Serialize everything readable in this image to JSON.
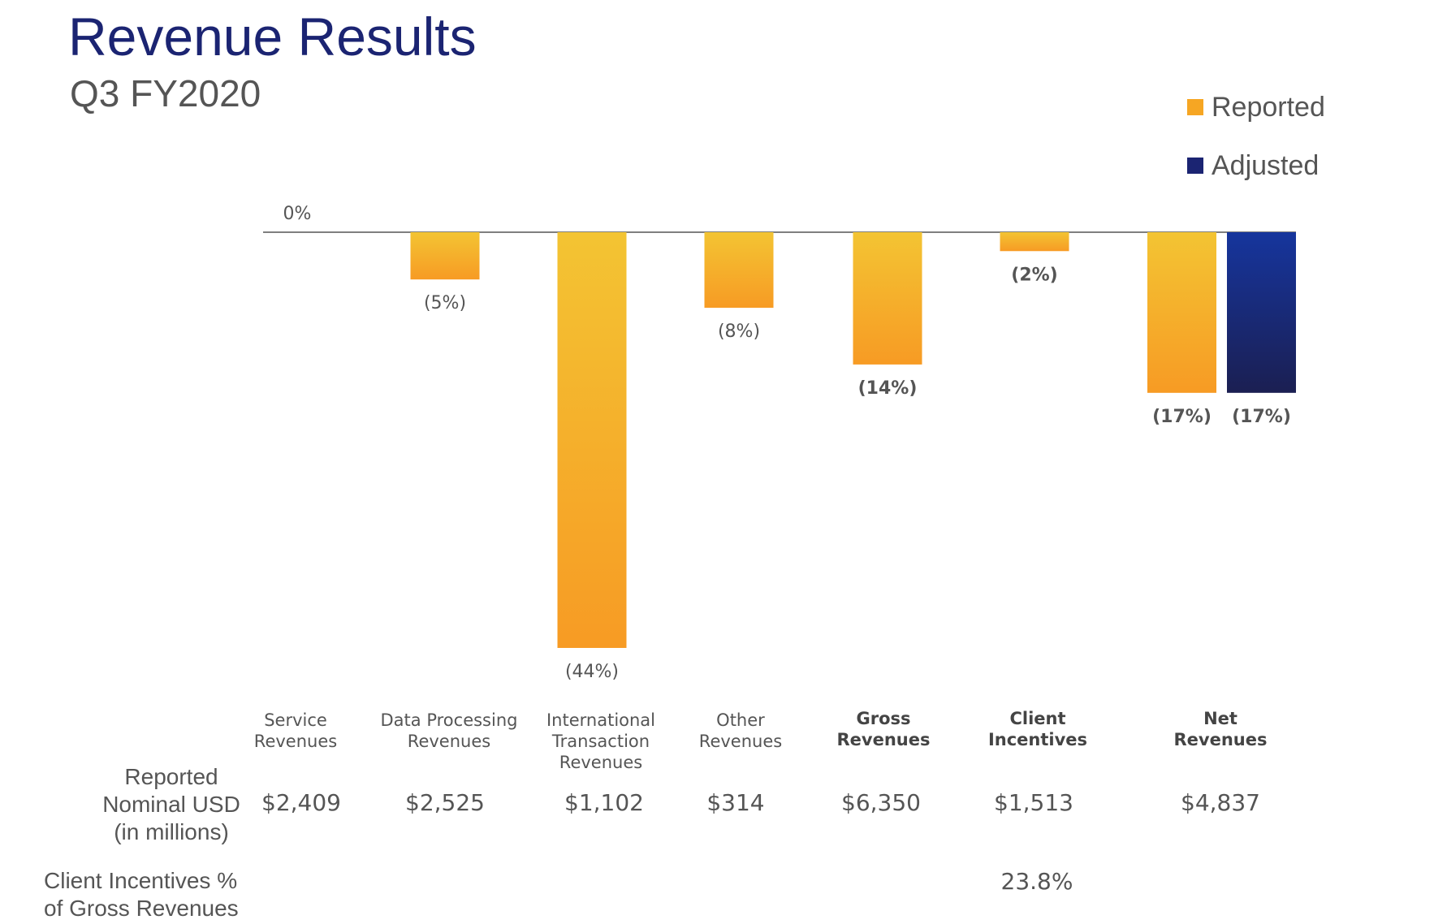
{
  "title": "Revenue Results",
  "subtitle": "Q3 FY2020",
  "legend": [
    {
      "label": "Reported",
      "color": "#f6a623"
    },
    {
      "label": "Adjusted",
      "color": "#1b2472"
    }
  ],
  "colors": {
    "reported_top": "#f3c433",
    "reported_bottom": "#f79b24",
    "adjusted_top": "#16359d",
    "adjusted_bottom": "#1b1f52"
  },
  "chart_data": {
    "type": "bar",
    "zero_label": "0%",
    "ylim": [
      -44,
      0
    ],
    "categories": [
      {
        "name": "Service Revenues",
        "bold": false
      },
      {
        "name": "Data Processing Revenues",
        "bold": false
      },
      {
        "name": "International Transaction Revenues",
        "bold": false
      },
      {
        "name": "Other Revenues",
        "bold": false
      },
      {
        "name": "Gross Revenues",
        "bold": true
      },
      {
        "name": "Client Incentives",
        "bold": true
      },
      {
        "name": "Net Revenues",
        "bold": true
      }
    ],
    "series": [
      {
        "name": "Reported",
        "values": [
          0,
          -5,
          -44,
          -8,
          -14,
          -2,
          -17
        ],
        "labels": [
          "",
          "(5%)",
          "(44%)",
          "(8%)",
          "(14%)",
          "(2%)",
          "(17%)"
        ]
      },
      {
        "name": "Adjusted",
        "values": [
          null,
          null,
          null,
          null,
          null,
          null,
          -17
        ],
        "labels": [
          "",
          "",
          "",
          "",
          "",
          "",
          "(17%)"
        ]
      }
    ]
  },
  "table": {
    "reported_label": [
      "Reported",
      "Nominal USD",
      "(in millions)"
    ],
    "reported_values": [
      "$2,409",
      "$2,525",
      "$1,102",
      "$314",
      "$6,350",
      "$1,513",
      "$4,837"
    ],
    "incentives_label": [
      "Client Incentives %",
      "of Gross Revenues"
    ],
    "incentives_value": "23.8%"
  }
}
